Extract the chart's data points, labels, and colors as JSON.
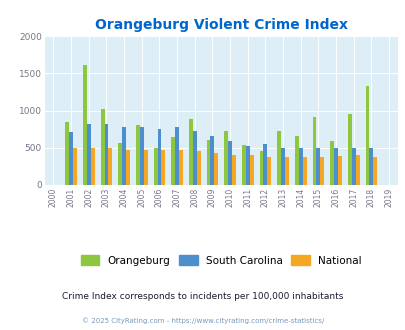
{
  "title": "Orangeburg Violent Crime Index",
  "years": [
    2000,
    2001,
    2002,
    2003,
    2004,
    2005,
    2006,
    2007,
    2008,
    2009,
    2010,
    2011,
    2012,
    2013,
    2014,
    2015,
    2016,
    2017,
    2018,
    2019
  ],
  "orangeburg": [
    null,
    850,
    1620,
    1020,
    560,
    800,
    500,
    640,
    880,
    600,
    720,
    540,
    450,
    720,
    660,
    910,
    590,
    960,
    1330,
    null
  ],
  "south_carolina": [
    null,
    710,
    820,
    815,
    780,
    775,
    750,
    775,
    730,
    660,
    595,
    525,
    545,
    495,
    500,
    500,
    500,
    500,
    490,
    null
  ],
  "national": [
    null,
    500,
    500,
    490,
    470,
    470,
    470,
    470,
    460,
    430,
    405,
    395,
    380,
    370,
    370,
    375,
    390,
    395,
    375,
    null
  ],
  "color_orangeburg": "#8dc63f",
  "color_sc": "#4d8fcc",
  "color_national": "#f5a623",
  "bg_color": "#ddeef6",
  "ylim": [
    0,
    2000
  ],
  "ylabel_ticks": [
    0,
    500,
    1000,
    1500,
    2000
  ],
  "subtitle": "Crime Index corresponds to incidents per 100,000 inhabitants",
  "footer": "© 2025 CityRating.com - https://www.cityrating.com/crime-statistics/",
  "title_color": "#0066cc",
  "subtitle_color": "#1a1a2e",
  "footer_color": "#7799bb"
}
